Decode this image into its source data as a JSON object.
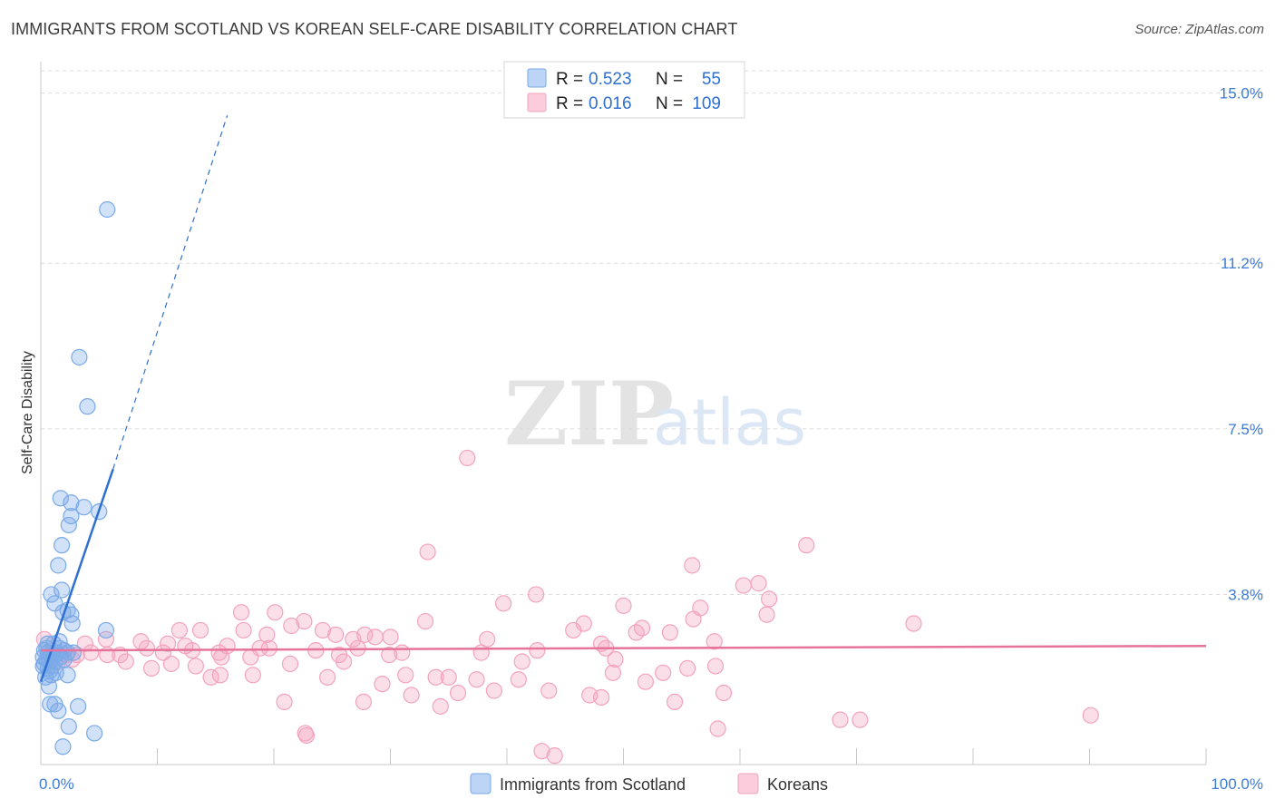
{
  "title": "IMMIGRANTS FROM SCOTLAND VS KOREAN SELF-CARE DISABILITY CORRELATION CHART",
  "source": "Source: ZipAtlas.com",
  "watermark": {
    "zip": "ZIP",
    "atlas": "atlas"
  },
  "chart_data": {
    "type": "scatter",
    "title": "IMMIGRANTS FROM SCOTLAND VS KOREAN SELF-CARE DISABILITY CORRELATION CHART",
    "xlabel": "",
    "ylabel": "Self-Care Disability",
    "xlim": [
      0,
      100
    ],
    "ylim": [
      0,
      15.5
    ],
    "x_tick_labels": [
      "0.0%",
      "100.0%"
    ],
    "y_ticks": [
      3.8,
      7.5,
      11.2,
      15.0
    ],
    "y_tick_labels": [
      "3.8%",
      "7.5%",
      "11.2%",
      "15.0%"
    ],
    "grid": true,
    "legend_position": "top-center",
    "series": [
      {
        "name": "Immigrants from Scotland",
        "color": "#7aaae8",
        "line_color": "#2f6fd1",
        "legend": {
          "r_label": "R =",
          "r": "0.523",
          "n_label": "N =",
          "n": "55"
        },
        "trend": {
          "x0": 0.0,
          "y0": 1.85,
          "x1": 6.2,
          "y1": 6.6,
          "dash_to_x": 16.0,
          "dash_to_y": 14.5
        },
        "points": [
          [
            5.7,
            12.4
          ],
          [
            3.3,
            9.1
          ],
          [
            4.0,
            8.0
          ],
          [
            1.7,
            5.95
          ],
          [
            2.6,
            5.85
          ],
          [
            3.7,
            5.75
          ],
          [
            5.0,
            5.65
          ],
          [
            2.6,
            5.55
          ],
          [
            2.4,
            5.35
          ],
          [
            1.8,
            4.9
          ],
          [
            1.5,
            4.45
          ],
          [
            1.8,
            3.9
          ],
          [
            0.9,
            3.8
          ],
          [
            1.2,
            3.6
          ],
          [
            2.3,
            3.45
          ],
          [
            1.9,
            3.4
          ],
          [
            2.6,
            3.35
          ],
          [
            2.7,
            3.15
          ],
          [
            5.6,
            3.0
          ],
          [
            1.6,
            2.75
          ],
          [
            0.6,
            2.7
          ],
          [
            1.1,
            2.7
          ],
          [
            2.0,
            2.55
          ],
          [
            0.3,
            2.55
          ],
          [
            0.6,
            2.5
          ],
          [
            1.4,
            2.5
          ],
          [
            2.3,
            2.5
          ],
          [
            2.8,
            2.5
          ],
          [
            0.9,
            2.45
          ],
          [
            1.3,
            2.45
          ],
          [
            0.2,
            2.4
          ],
          [
            1.7,
            2.4
          ],
          [
            2.0,
            2.35
          ],
          [
            0.5,
            2.35
          ],
          [
            0.7,
            2.3
          ],
          [
            1.2,
            2.3
          ],
          [
            0.3,
            2.25
          ],
          [
            1.0,
            2.2
          ],
          [
            0.6,
            2.15
          ],
          [
            0.8,
            2.1
          ],
          [
            1.3,
            2.05
          ],
          [
            2.3,
            2.0
          ],
          [
            0.4,
            1.95
          ],
          [
            0.9,
            2.0
          ],
          [
            0.7,
            1.75
          ],
          [
            1.2,
            1.35
          ],
          [
            0.8,
            1.35
          ],
          [
            3.2,
            1.3
          ],
          [
            1.5,
            1.2
          ],
          [
            2.4,
            0.85
          ],
          [
            4.6,
            0.7
          ],
          [
            1.9,
            0.4
          ],
          [
            0.5,
            2.6
          ],
          [
            1.6,
            2.6
          ],
          [
            0.2,
            2.2
          ]
        ]
      },
      {
        "name": "Koreans",
        "color": "#f3a3bd",
        "line_color": "#e5739b",
        "legend": {
          "r_label": "R =",
          "r": "0.016",
          "n_label": "N =",
          "n": "109"
        },
        "trend": {
          "x0": 0.0,
          "y0": 2.55,
          "x1": 100.0,
          "y1": 2.65
        },
        "points": [
          [
            36.6,
            6.85
          ],
          [
            33.2,
            4.75
          ],
          [
            65.7,
            4.9
          ],
          [
            55.9,
            4.45
          ],
          [
            60.3,
            4.0
          ],
          [
            61.6,
            4.05
          ],
          [
            62.5,
            3.7
          ],
          [
            42.5,
            3.8
          ],
          [
            39.7,
            3.6
          ],
          [
            50.0,
            3.55
          ],
          [
            56.6,
            3.5
          ],
          [
            17.2,
            3.4
          ],
          [
            20.1,
            3.4
          ],
          [
            62.3,
            3.35
          ],
          [
            56.0,
            3.25
          ],
          [
            22.6,
            3.2
          ],
          [
            33.0,
            3.2
          ],
          [
            74.9,
            3.15
          ],
          [
            21.5,
            3.1
          ],
          [
            46.6,
            3.15
          ],
          [
            51.6,
            3.05
          ],
          [
            17.4,
            3.0
          ],
          [
            45.7,
            3.0
          ],
          [
            11.9,
            3.0
          ],
          [
            13.7,
            3.0
          ],
          [
            24.2,
            3.0
          ],
          [
            51.1,
            2.95
          ],
          [
            54.0,
            2.95
          ],
          [
            25.3,
            2.9
          ],
          [
            19.4,
            2.9
          ],
          [
            27.8,
            2.9
          ],
          [
            28.7,
            2.85
          ],
          [
            30.0,
            2.85
          ],
          [
            38.3,
            2.8
          ],
          [
            48.1,
            2.7
          ],
          [
            26.8,
            2.8
          ],
          [
            57.8,
            2.75
          ],
          [
            0.3,
            2.8
          ],
          [
            5.6,
            2.8
          ],
          [
            3.8,
            2.7
          ],
          [
            8.6,
            2.75
          ],
          [
            10.9,
            2.7
          ],
          [
            16.0,
            2.65
          ],
          [
            12.4,
            2.65
          ],
          [
            18.8,
            2.6
          ],
          [
            19.6,
            2.6
          ],
          [
            9.1,
            2.6
          ],
          [
            27.2,
            2.6
          ],
          [
            23.6,
            2.55
          ],
          [
            48.5,
            2.6
          ],
          [
            4.3,
            2.5
          ],
          [
            5.7,
            2.45
          ],
          [
            6.8,
            2.45
          ],
          [
            2.2,
            2.45
          ],
          [
            3.1,
            2.45
          ],
          [
            13.0,
            2.55
          ],
          [
            15.3,
            2.5
          ],
          [
            10.5,
            2.5
          ],
          [
            31.0,
            2.5
          ],
          [
            37.8,
            2.5
          ],
          [
            42.6,
            2.55
          ],
          [
            2.7,
            2.35
          ],
          [
            7.3,
            2.3
          ],
          [
            1.5,
            2.3
          ],
          [
            15.5,
            2.4
          ],
          [
            18.0,
            2.4
          ],
          [
            25.6,
            2.45
          ],
          [
            29.9,
            2.45
          ],
          [
            11.2,
            2.25
          ],
          [
            13.3,
            2.2
          ],
          [
            21.4,
            2.25
          ],
          [
            26.0,
            2.3
          ],
          [
            41.3,
            2.3
          ],
          [
            49.3,
            2.35
          ],
          [
            57.9,
            2.2
          ],
          [
            15.4,
            2.0
          ],
          [
            14.6,
            1.95
          ],
          [
            24.6,
            1.95
          ],
          [
            31.3,
            2.0
          ],
          [
            35.0,
            1.95
          ],
          [
            37.4,
            1.9
          ],
          [
            41.0,
            1.9
          ],
          [
            33.9,
            1.95
          ],
          [
            53.4,
            2.05
          ],
          [
            49.1,
            2.05
          ],
          [
            55.5,
            2.15
          ],
          [
            51.9,
            1.85
          ],
          [
            38.9,
            1.65
          ],
          [
            29.3,
            1.8
          ],
          [
            43.6,
            1.65
          ],
          [
            35.8,
            1.6
          ],
          [
            47.1,
            1.55
          ],
          [
            48.1,
            1.5
          ],
          [
            31.8,
            1.55
          ],
          [
            58.6,
            1.6
          ],
          [
            27.7,
            1.4
          ],
          [
            20.9,
            1.4
          ],
          [
            54.4,
            1.4
          ],
          [
            34.3,
            1.3
          ],
          [
            68.6,
            1.0
          ],
          [
            70.3,
            1.0
          ],
          [
            90.1,
            1.1
          ],
          [
            58.1,
            0.8
          ],
          [
            22.7,
            0.7
          ],
          [
            22.8,
            0.65
          ],
          [
            43.0,
            0.3
          ],
          [
            44.1,
            0.2
          ],
          [
            18.2,
            2.0
          ],
          [
            9.5,
            2.15
          ]
        ]
      }
    ]
  }
}
